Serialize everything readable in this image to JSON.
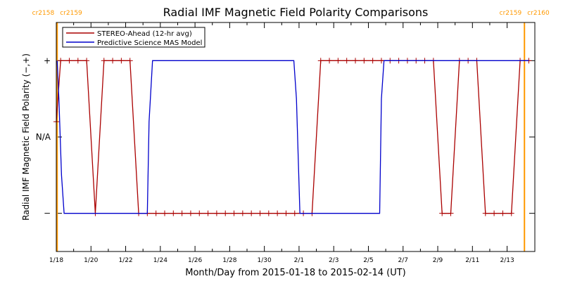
{
  "chart_data": {
    "type": "line",
    "title": "Radial IMF Magnetic Field Polarity Comparisons",
    "xlabel": "Month/Day from 2015-01-18 to 2015-02-14 (UT)",
    "ylabel": "Radial IMF Magnetic Field Polarity (−,+)",
    "x_unit": "days since 2015-01-18",
    "xlim": [
      0,
      27
    ],
    "ylim": [
      -1.5,
      1.5
    ],
    "x_ticks": [
      {
        "x": 0,
        "label": "1/18"
      },
      {
        "x": 2,
        "label": "1/20"
      },
      {
        "x": 4,
        "label": "1/22"
      },
      {
        "x": 6,
        "label": "1/24"
      },
      {
        "x": 8,
        "label": "1/26"
      },
      {
        "x": 10,
        "label": "1/28"
      },
      {
        "x": 12,
        "label": "1/30"
      },
      {
        "x": 14,
        "label": "2/1"
      },
      {
        "x": 16,
        "label": "2/3"
      },
      {
        "x": 18,
        "label": "2/5"
      },
      {
        "x": 20,
        "label": "2/7"
      },
      {
        "x": 22,
        "label": "2/9"
      },
      {
        "x": 24,
        "label": "2/11"
      },
      {
        "x": 26,
        "label": "2/13"
      }
    ],
    "y_ticks": [
      {
        "y": 1,
        "label": "+"
      },
      {
        "y": 0,
        "label": "N/A"
      },
      {
        "y": -1,
        "label": "−"
      }
    ],
    "legend_placement": "top-left",
    "carrington_markers": [
      {
        "x": 0.05,
        "left_label": "cr2158",
        "right_label": "cr2159",
        "color": "#ff9900"
      },
      {
        "x": 27.0,
        "left_label": "cr2159",
        "right_label": "cr2160",
        "color": "#ff9900"
      }
    ],
    "series": [
      {
        "name": "STEREO-Ahead (12-hr avg)",
        "color": "#aa0000",
        "marker": "plus",
        "points": [
          [
            0.0,
            0.2
          ],
          [
            0.25,
            1
          ],
          [
            0.75,
            1
          ],
          [
            1.25,
            1
          ],
          [
            1.75,
            1
          ],
          [
            2.25,
            -1
          ],
          [
            2.75,
            1
          ],
          [
            3.25,
            1
          ],
          [
            3.75,
            1
          ],
          [
            4.25,
            1
          ],
          [
            4.75,
            -1
          ],
          [
            5.25,
            -1
          ],
          [
            5.75,
            -1
          ],
          [
            6.25,
            -1
          ],
          [
            6.75,
            -1
          ],
          [
            7.25,
            -1
          ],
          [
            7.75,
            -1
          ],
          [
            8.25,
            -1
          ],
          [
            8.75,
            -1
          ],
          [
            9.25,
            -1
          ],
          [
            9.75,
            -1
          ],
          [
            10.25,
            -1
          ],
          [
            10.75,
            -1
          ],
          [
            11.25,
            -1
          ],
          [
            11.75,
            -1
          ],
          [
            12.25,
            -1
          ],
          [
            12.75,
            -1
          ],
          [
            13.25,
            -1
          ],
          [
            13.75,
            -1
          ],
          [
            14.25,
            -1
          ],
          [
            14.75,
            -1
          ],
          [
            15.25,
            1
          ],
          [
            15.75,
            1
          ],
          [
            16.25,
            1
          ],
          [
            16.75,
            1
          ],
          [
            17.25,
            1
          ],
          [
            17.75,
            1
          ],
          [
            18.25,
            1
          ],
          [
            18.75,
            1
          ],
          [
            19.25,
            1
          ],
          [
            19.75,
            1
          ],
          [
            20.25,
            1
          ],
          [
            20.75,
            1
          ],
          [
            21.25,
            1
          ],
          [
            21.75,
            1
          ],
          [
            22.25,
            -1
          ],
          [
            22.75,
            -1
          ],
          [
            23.25,
            1
          ],
          [
            23.75,
            1
          ],
          [
            24.25,
            1
          ],
          [
            24.75,
            -1
          ],
          [
            25.25,
            -1
          ],
          [
            25.75,
            -1
          ],
          [
            26.25,
            -1
          ],
          [
            26.75,
            1
          ],
          [
            27.25,
            1
          ],
          [
            27.75,
            1
          ]
        ]
      },
      {
        "name": "Predictive Science MAS Model",
        "color": "#0000cc",
        "marker": "none",
        "points": [
          [
            0.05,
            1
          ],
          [
            0.15,
            0.5
          ],
          [
            0.3,
            -0.5
          ],
          [
            0.45,
            -1
          ],
          [
            5.25,
            -1
          ],
          [
            5.35,
            0.2
          ],
          [
            5.55,
            1
          ],
          [
            13.7,
            1
          ],
          [
            13.85,
            0.5
          ],
          [
            14.05,
            -1
          ],
          [
            18.65,
            -1
          ],
          [
            18.75,
            0.5
          ],
          [
            18.9,
            1
          ],
          [
            27.25,
            1
          ]
        ]
      }
    ]
  }
}
